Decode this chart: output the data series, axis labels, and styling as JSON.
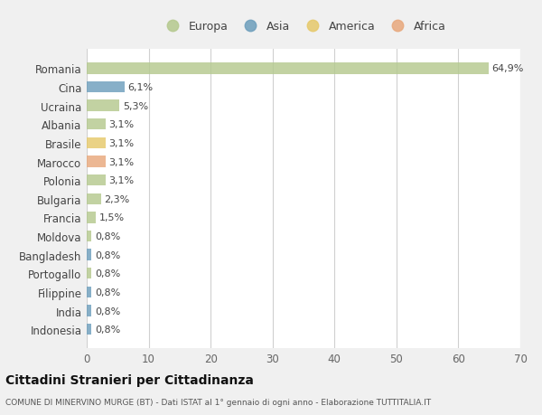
{
  "categories": [
    "Romania",
    "Cina",
    "Ucraina",
    "Albania",
    "Brasile",
    "Marocco",
    "Polonia",
    "Bulgaria",
    "Francia",
    "Moldova",
    "Bangladesh",
    "Portogallo",
    "Filippine",
    "India",
    "Indonesia"
  ],
  "values": [
    64.9,
    6.1,
    5.3,
    3.1,
    3.1,
    3.1,
    3.1,
    2.3,
    1.5,
    0.8,
    0.8,
    0.8,
    0.8,
    0.8,
    0.8
  ],
  "labels": [
    "64,9%",
    "6,1%",
    "5,3%",
    "3,1%",
    "3,1%",
    "3,1%",
    "3,1%",
    "2,3%",
    "1,5%",
    "0,8%",
    "0,8%",
    "0,8%",
    "0,8%",
    "0,8%",
    "0,8%"
  ],
  "colors": [
    "#b5c98e",
    "#6d9ebc",
    "#b5c98e",
    "#b5c98e",
    "#e6c96a",
    "#e8a87c",
    "#b5c98e",
    "#b5c98e",
    "#b5c98e",
    "#b5c98e",
    "#6d9ebc",
    "#b5c98e",
    "#6d9ebc",
    "#6d9ebc",
    "#6d9ebc"
  ],
  "legend_labels": [
    "Europa",
    "Asia",
    "America",
    "Africa"
  ],
  "legend_colors": [
    "#b5c98e",
    "#6d9ebc",
    "#e6c96a",
    "#e8a87c"
  ],
  "xlim": [
    0,
    70
  ],
  "xticks": [
    0,
    10,
    20,
    30,
    40,
    50,
    60,
    70
  ],
  "title": "Cittadini Stranieri per Cittadinanza",
  "subtitle": "COMUNE DI MINERVINO MURGE (BT) - Dati ISTAT al 1° gennaio di ogni anno - Elaborazione TUTTITALIA.IT",
  "bg_color": "#f0f0f0",
  "plot_bg_color": "#ffffff",
  "grid_color": "#d0d0d0",
  "bar_height": 0.6
}
